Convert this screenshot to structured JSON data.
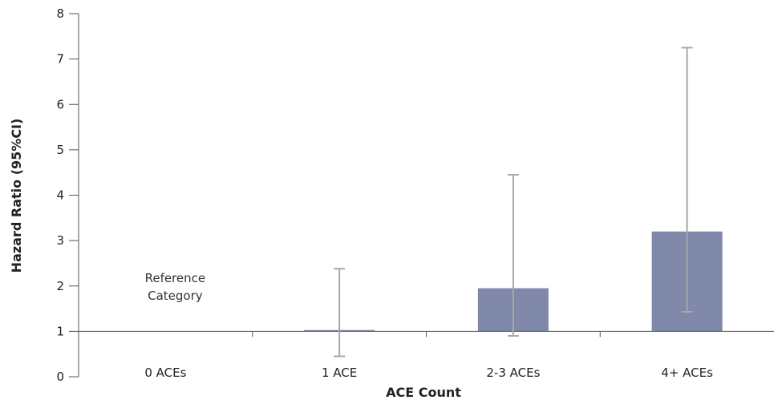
{
  "chart_data": {
    "type": "bar",
    "title": "",
    "xlabel": "ACE Count",
    "ylabel": "Hazard Ratio (95%CI)",
    "ylim": [
      0,
      8
    ],
    "yticks": [
      0,
      1,
      2,
      3,
      4,
      5,
      6,
      7,
      8
    ],
    "baseline": 1,
    "categories": [
      "0 ACEs",
      "1 ACE",
      "2-3 ACEs",
      "4+ ACEs"
    ],
    "values": [
      1,
      1.03,
      1.95,
      3.2
    ],
    "ci_low": [
      null,
      0.45,
      0.9,
      1.43
    ],
    "ci_high": [
      null,
      2.38,
      4.45,
      7.25
    ],
    "annotations": [
      {
        "category": "0 ACEs",
        "lines": [
          "Reference",
          "Category"
        ]
      }
    ],
    "colors": {
      "bar": "#8089aa",
      "error_bar": "#a8a8a8",
      "axis": "#555555"
    },
    "grid": false,
    "legend": "none"
  }
}
